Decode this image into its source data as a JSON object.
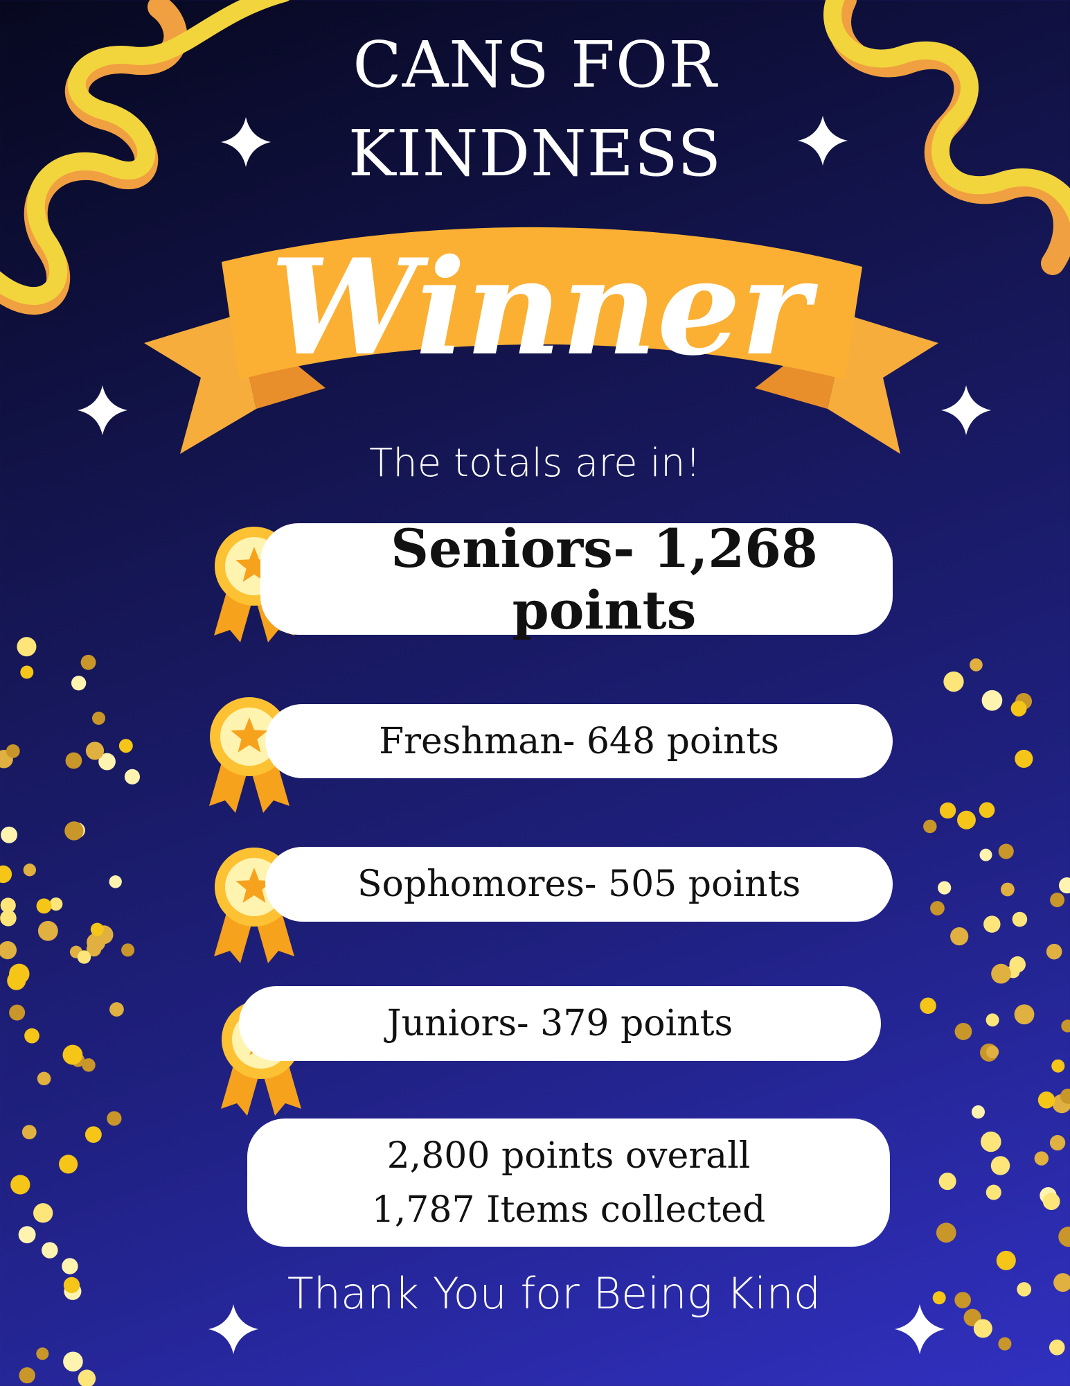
{
  "title": {
    "line1": "CANS FOR",
    "line2": "KINDNESS"
  },
  "banner": "Winner",
  "subtitle": "The totals are in!",
  "results": [
    {
      "label": "Seniors- 1,268 points",
      "icon": "award-medal-icon"
    },
    {
      "label": "Freshman- 648 points",
      "icon": "award-medal-icon"
    },
    {
      "label": "Sophomores- 505 points",
      "icon": "award-medal-icon"
    },
    {
      "label": "Juniors- 379 points",
      "icon": "award-medal-icon"
    }
  ],
  "summary": {
    "line1": "2,800 points overall",
    "line2": "1,787 Items collected"
  },
  "footer": "Thank You for Being Kind",
  "colors": {
    "background": "#1f2080",
    "ribbon": "#fbb034",
    "streamer": "#f2d53c",
    "medal": "#fdc234"
  }
}
